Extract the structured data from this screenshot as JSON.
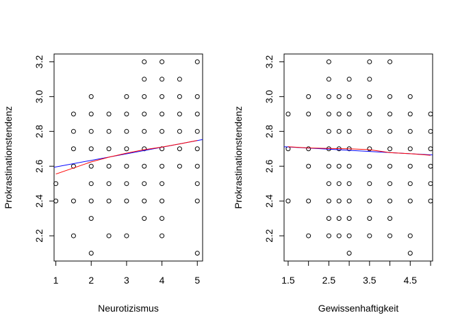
{
  "chart_data": [
    {
      "type": "scatter",
      "xlabel": "Neurotizismus",
      "ylabel": "Prokrastinationstendenz",
      "xlim": [
        0.95,
        5.15
      ],
      "ylim": [
        2.055,
        3.245
      ],
      "x_ticks": [
        1,
        2,
        3,
        4,
        5
      ],
      "x_tick_labels": [
        "1",
        "2",
        "3",
        "4",
        "5"
      ],
      "y_ticks": [
        2.2,
        2.4,
        2.6,
        2.8,
        3.0,
        3.2
      ],
      "y_tick_labels": [
        "2.2",
        "2.4",
        "2.6",
        "2.8",
        "3.0",
        "3.2"
      ],
      "grid": false,
      "points": [
        [
          1,
          2.5
        ],
        [
          1,
          2.4
        ],
        [
          1.5,
          2.9
        ],
        [
          1.5,
          2.8
        ],
        [
          1.5,
          2.7
        ],
        [
          1.5,
          2.6
        ],
        [
          1.5,
          2.4
        ],
        [
          1.5,
          2.2
        ],
        [
          2,
          3.0
        ],
        [
          2,
          2.9
        ],
        [
          2,
          2.8
        ],
        [
          2,
          2.7
        ],
        [
          2,
          2.6
        ],
        [
          2,
          2.5
        ],
        [
          2,
          2.4
        ],
        [
          2,
          2.3
        ],
        [
          2,
          2.1
        ],
        [
          2.5,
          2.9
        ],
        [
          2.5,
          2.8
        ],
        [
          2.5,
          2.7
        ],
        [
          2.5,
          2.6
        ],
        [
          2.5,
          2.5
        ],
        [
          2.5,
          2.4
        ],
        [
          2.5,
          2.2
        ],
        [
          3,
          3.0
        ],
        [
          3,
          2.9
        ],
        [
          3,
          2.8
        ],
        [
          3,
          2.7
        ],
        [
          3,
          2.6
        ],
        [
          3,
          2.5
        ],
        [
          3,
          2.4
        ],
        [
          3,
          2.2
        ],
        [
          3.5,
          3.2
        ],
        [
          3.5,
          3.1
        ],
        [
          3.5,
          3.0
        ],
        [
          3.5,
          2.9
        ],
        [
          3.5,
          2.8
        ],
        [
          3.5,
          2.7
        ],
        [
          3.5,
          2.6
        ],
        [
          3.5,
          2.5
        ],
        [
          3.5,
          2.4
        ],
        [
          3.5,
          2.3
        ],
        [
          4,
          3.2
        ],
        [
          4,
          3.1
        ],
        [
          4,
          3.0
        ],
        [
          4,
          2.9
        ],
        [
          4,
          2.8
        ],
        [
          4,
          2.7
        ],
        [
          4,
          2.6
        ],
        [
          4,
          2.5
        ],
        [
          4,
          2.4
        ],
        [
          4,
          2.3
        ],
        [
          4,
          2.2
        ],
        [
          4.5,
          3.1
        ],
        [
          4.5,
          3.0
        ],
        [
          4.5,
          2.9
        ],
        [
          4.5,
          2.8
        ],
        [
          4.5,
          2.7
        ],
        [
          4.5,
          2.6
        ],
        [
          5,
          3.2
        ],
        [
          5,
          3.0
        ],
        [
          5,
          2.9
        ],
        [
          5,
          2.8
        ],
        [
          5,
          2.7
        ],
        [
          5,
          2.6
        ],
        [
          5,
          2.5
        ],
        [
          5,
          2.4
        ],
        [
          5,
          2.1
        ]
      ],
      "lines": [
        {
          "color": "#0000ff",
          "points": [
            [
              0.95,
              2.594
            ],
            [
              5.15,
              2.753
            ]
          ]
        },
        {
          "color": "#ff0000",
          "points": [
            [
              1,
              2.555
            ],
            [
              1.5,
              2.59
            ],
            [
              2,
              2.625
            ],
            [
              2.5,
              2.652
            ],
            [
              3,
              2.675
            ],
            [
              3.5,
              2.695
            ],
            [
              4,
              2.71
            ],
            [
              4.5,
              2.728
            ],
            [
              5,
              2.748
            ]
          ]
        }
      ]
    },
    {
      "type": "scatter",
      "xlabel": "Gewissenhaftigkeit",
      "ylabel": "Prokrastinationstendenz",
      "xlim": [
        1.4,
        5.05
      ],
      "ylim": [
        2.055,
        3.245
      ],
      "x_ticks": [
        1.5,
        2.0,
        2.5,
        3.0,
        3.5,
        4.0,
        4.5,
        5.0
      ],
      "x_tick_labels": [
        "1.5",
        "",
        "2.5",
        "",
        "3.5",
        "",
        "4.5",
        ""
      ],
      "y_ticks": [
        2.2,
        2.4,
        2.6,
        2.8,
        3.0,
        3.2
      ],
      "y_tick_labels": [
        "2.2",
        "2.4",
        "2.6",
        "2.8",
        "3.0",
        "3.2"
      ],
      "grid": false,
      "points": [
        [
          1.5,
          2.9
        ],
        [
          1.5,
          2.7
        ],
        [
          1.5,
          2.4
        ],
        [
          2,
          3.0
        ],
        [
          2,
          2.9
        ],
        [
          2,
          2.7
        ],
        [
          2,
          2.6
        ],
        [
          2,
          2.4
        ],
        [
          2,
          2.2
        ],
        [
          2.5,
          3.2
        ],
        [
          2.5,
          3.1
        ],
        [
          2.5,
          3.0
        ],
        [
          2.5,
          2.9
        ],
        [
          2.5,
          2.8
        ],
        [
          2.5,
          2.7
        ],
        [
          2.5,
          2.6
        ],
        [
          2.5,
          2.5
        ],
        [
          2.5,
          2.4
        ],
        [
          2.5,
          2.3
        ],
        [
          2.5,
          2.2
        ],
        [
          2.75,
          3.0
        ],
        [
          2.75,
          2.9
        ],
        [
          2.75,
          2.8
        ],
        [
          2.75,
          2.7
        ],
        [
          2.75,
          2.6
        ],
        [
          2.75,
          2.5
        ],
        [
          2.75,
          2.4
        ],
        [
          2.75,
          2.3
        ],
        [
          2.75,
          2.2
        ],
        [
          3,
          3.1
        ],
        [
          3,
          3.0
        ],
        [
          3,
          2.9
        ],
        [
          3,
          2.8
        ],
        [
          3,
          2.7
        ],
        [
          3,
          2.6
        ],
        [
          3,
          2.5
        ],
        [
          3,
          2.4
        ],
        [
          3,
          2.3
        ],
        [
          3,
          2.2
        ],
        [
          3,
          2.1
        ],
        [
          3.5,
          3.2
        ],
        [
          3.5,
          3.1
        ],
        [
          3.5,
          3.0
        ],
        [
          3.5,
          2.9
        ],
        [
          3.5,
          2.8
        ],
        [
          3.5,
          2.7
        ],
        [
          3.5,
          2.6
        ],
        [
          3.5,
          2.5
        ],
        [
          3.5,
          2.4
        ],
        [
          3.5,
          2.3
        ],
        [
          3.5,
          2.2
        ],
        [
          4,
          3.2
        ],
        [
          4,
          3.0
        ],
        [
          4,
          2.9
        ],
        [
          4,
          2.8
        ],
        [
          4,
          2.7
        ],
        [
          4,
          2.6
        ],
        [
          4,
          2.5
        ],
        [
          4,
          2.4
        ],
        [
          4,
          2.3
        ],
        [
          4,
          2.2
        ],
        [
          4.5,
          3.0
        ],
        [
          4.5,
          2.9
        ],
        [
          4.5,
          2.8
        ],
        [
          4.5,
          2.7
        ],
        [
          4.5,
          2.6
        ],
        [
          4.5,
          2.5
        ],
        [
          4.5,
          2.4
        ],
        [
          4.5,
          2.2
        ],
        [
          4.5,
          2.1
        ],
        [
          5,
          2.9
        ],
        [
          5,
          2.8
        ],
        [
          5,
          2.7
        ],
        [
          5,
          2.6
        ],
        [
          5,
          2.5
        ],
        [
          5,
          2.4
        ]
      ],
      "lines": [
        {
          "color": "#0000ff",
          "points": [
            [
              1.4,
              2.712
            ],
            [
              5.05,
              2.665
            ]
          ]
        },
        {
          "color": "#ff0000",
          "points": [
            [
              1.5,
              2.712
            ],
            [
              2,
              2.705
            ],
            [
              2.5,
              2.702
            ],
            [
              3,
              2.7
            ],
            [
              3.5,
              2.695
            ],
            [
              4,
              2.678
            ],
            [
              4.5,
              2.672
            ],
            [
              5,
              2.663
            ]
          ]
        }
      ]
    }
  ]
}
